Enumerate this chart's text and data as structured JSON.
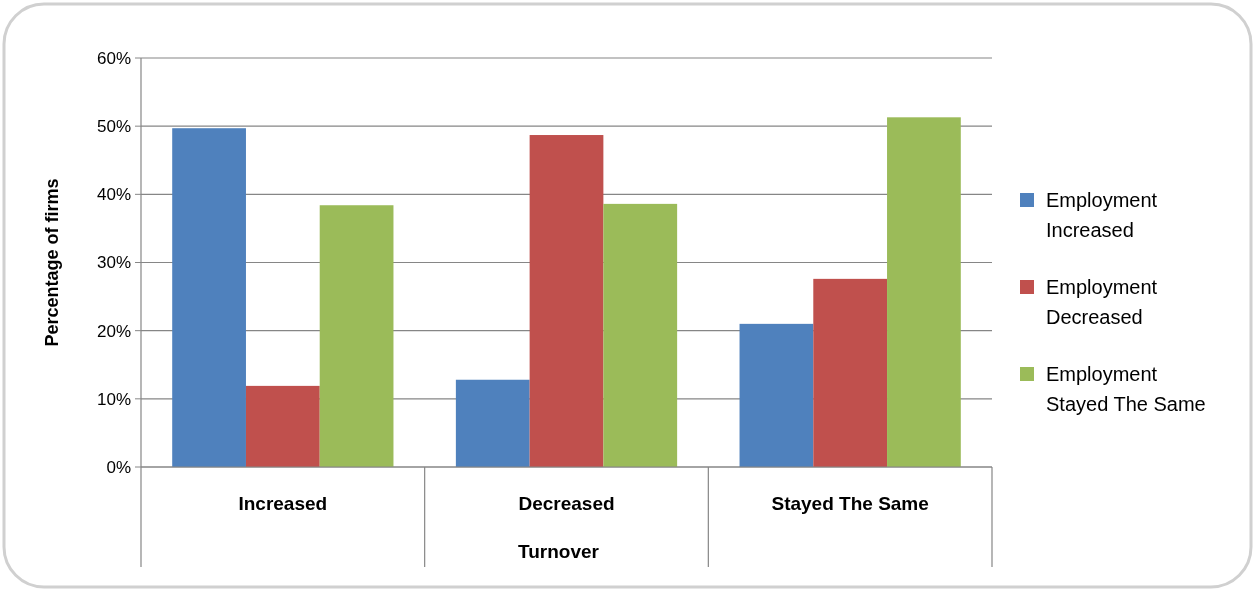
{
  "chart_data": {
    "type": "bar",
    "xlabel": "Turnover",
    "ylabel": "Percentage of firms",
    "categories": [
      "Increased",
      "Decreased",
      "Stayed The Same"
    ],
    "series": [
      {
        "name": "Employment Increased",
        "color": "#4f81bd",
        "values": [
          49.7,
          12.8,
          21.0
        ]
      },
      {
        "name": "Employment Decreased",
        "color": "#c0504d",
        "values": [
          11.9,
          48.7,
          27.6
        ]
      },
      {
        "name": "Employment Stayed The Same",
        "color": "#9bbb59",
        "values": [
          38.4,
          38.6,
          51.3
        ]
      }
    ],
    "ylim": [
      0,
      60
    ],
    "yticks": [
      {
        "value": 0,
        "label": "0%"
      },
      {
        "value": 10,
        "label": "10%"
      },
      {
        "value": 20,
        "label": "20%"
      },
      {
        "value": 30,
        "label": "30%"
      },
      {
        "value": 40,
        "label": "40%"
      },
      {
        "value": 50,
        "label": "50%"
      },
      {
        "value": 60,
        "label": "60%"
      }
    ],
    "grid": "y",
    "legend": "right"
  }
}
